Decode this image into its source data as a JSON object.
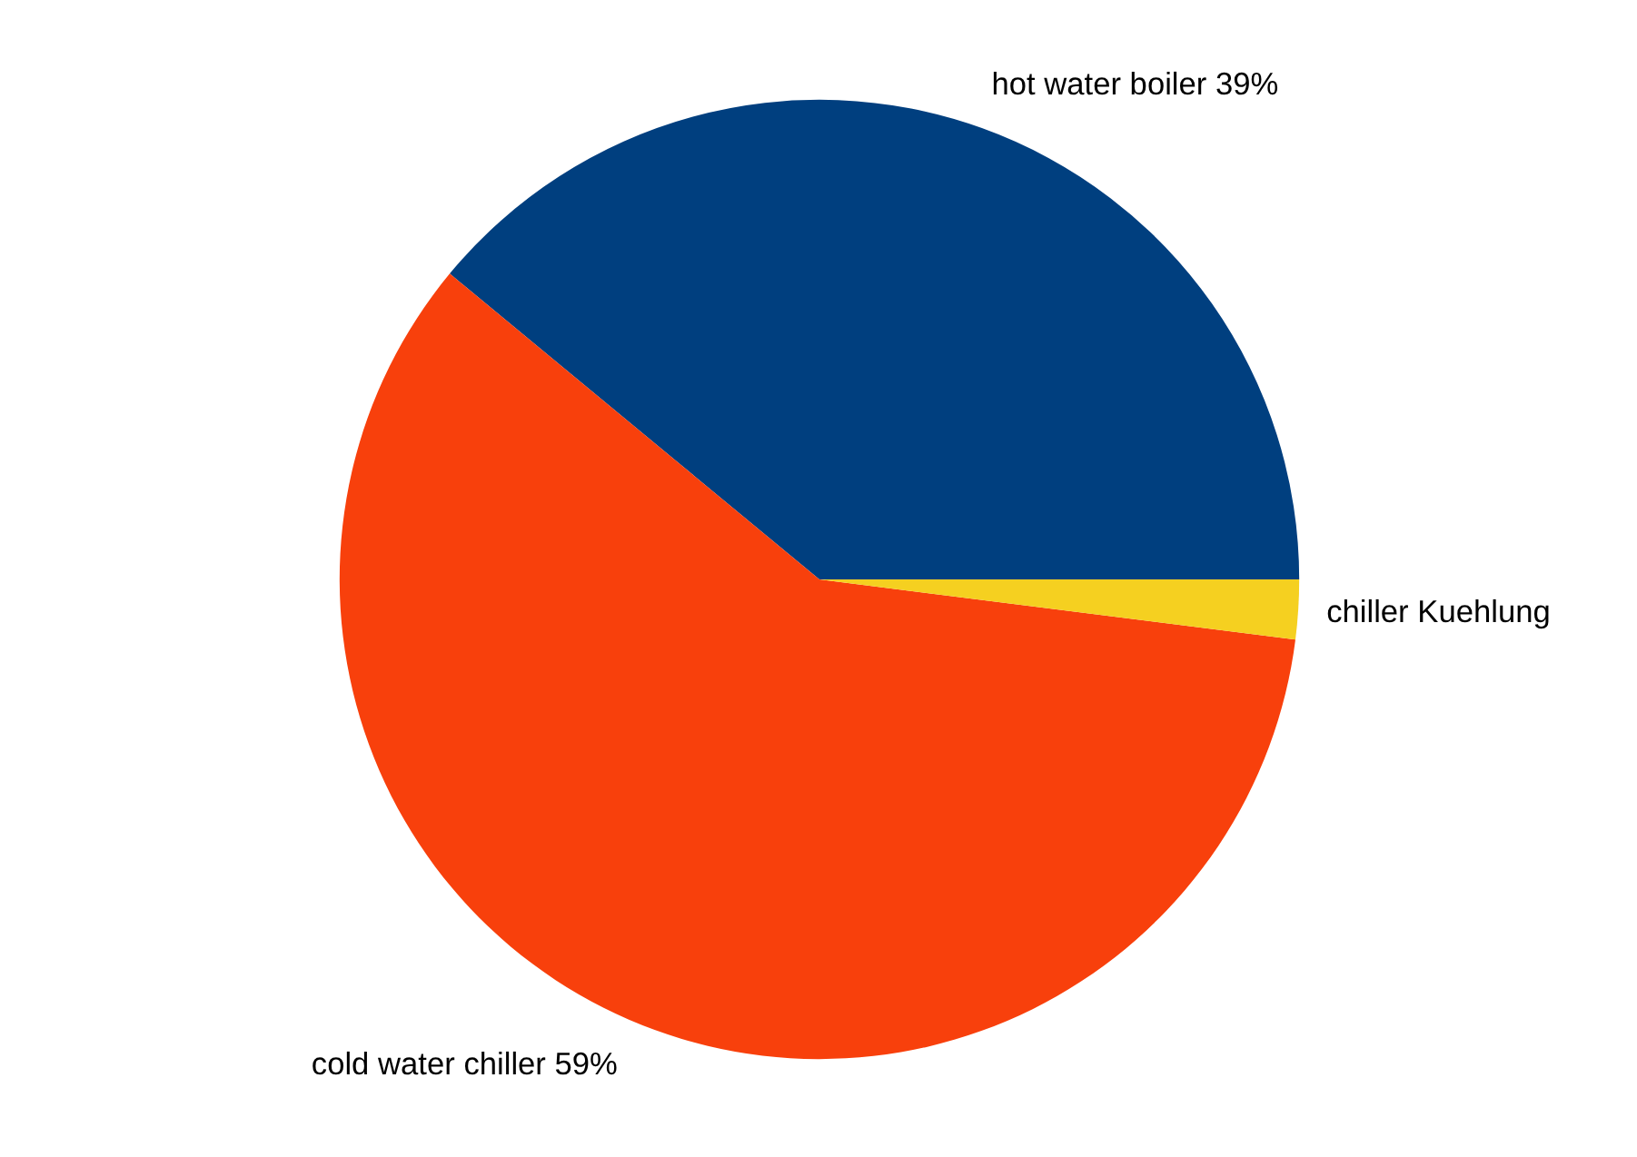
{
  "chart_data": {
    "type": "pie",
    "categories": [
      "hot water boiler",
      "cold water chiller",
      "chiller Kuehlung"
    ],
    "values": [
      39,
      59,
      2
    ],
    "value_labels": [
      "39%",
      "59%",
      null
    ],
    "colors": [
      "#003f7f",
      "#f8400c",
      "#f5d020"
    ]
  }
}
